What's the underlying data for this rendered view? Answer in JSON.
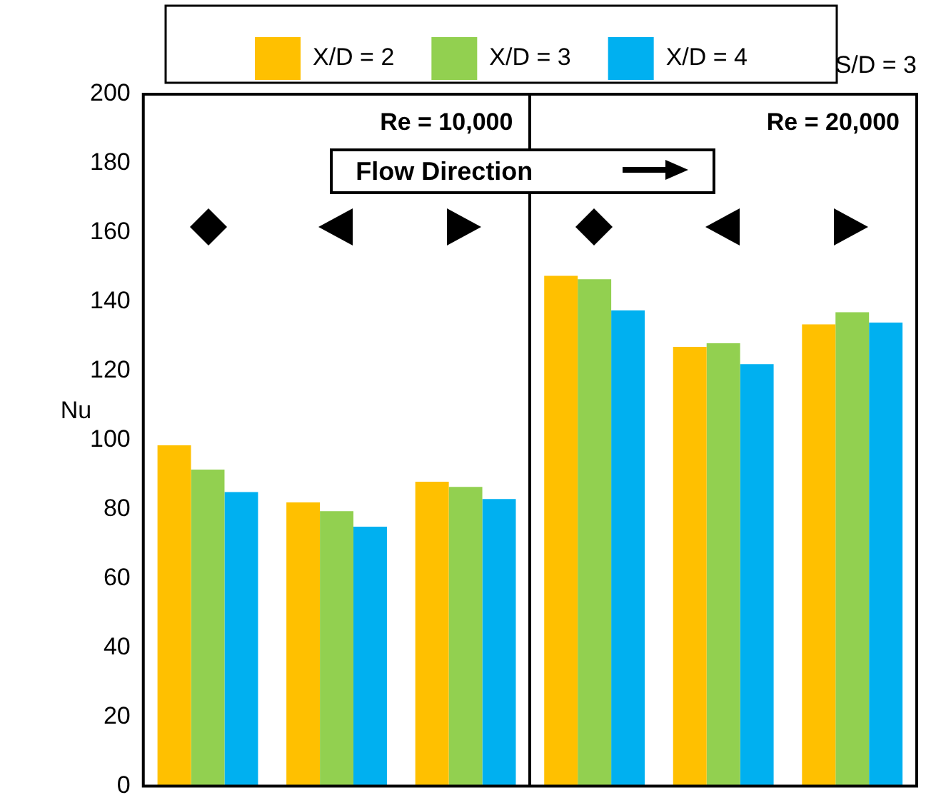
{
  "chart_data": {
    "type": "bar",
    "ylabel": "Nu",
    "annotations": [
      "S/D = 3",
      "Re = 10,000",
      "Re = 20,000",
      "Flow Direction"
    ],
    "categories": [
      null,
      null,
      null,
      null,
      null,
      null
    ],
    "series": [
      {
        "name": "X/D = 2",
        "color": "#ffc000",
        "values": [
          98.5,
          82,
          88,
          147.5,
          127,
          133.5
        ]
      },
      {
        "name": "X/D = 3",
        "color": "#92d050",
        "values": [
          91.5,
          79.5,
          86.5,
          146.5,
          128,
          137
        ]
      },
      {
        "name": "X/D = 4",
        "color": "#00b0f0",
        "values": [
          85,
          75,
          83,
          137.5,
          122,
          134
        ]
      }
    ],
    "ylim": [
      0,
      200
    ],
    "yticks": [
      0,
      20,
      40,
      60,
      80,
      100,
      120,
      140,
      160,
      180,
      200
    ],
    "grid": false,
    "legend": "top"
  }
}
